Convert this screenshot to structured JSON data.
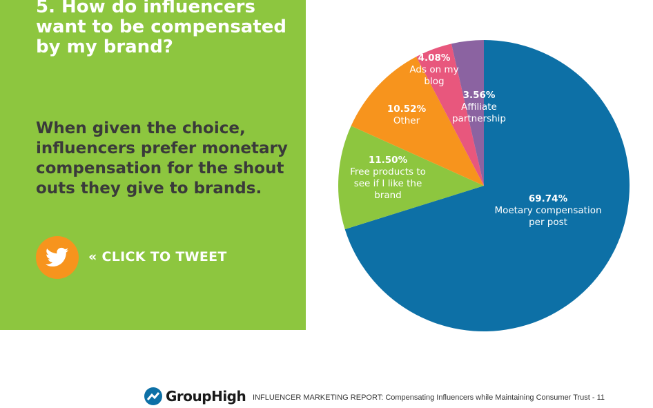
{
  "slide": {
    "question": "5. How do influencers want to be compensated by my brand?",
    "answer": "When given the choice, influencers prefer monetary compensation for the shout outs they give to brands.",
    "tweet_label": "« CLICK TO TWEET"
  },
  "footer": {
    "brand": "GroupHigh",
    "text": "INFLUENCER MARKETING REPORT:  Compensating Influencers while Maintaining Consumer Trust - 11"
  },
  "icons": {
    "tweet": "twitter-bird-icon",
    "logo": "grouphigh-logo-icon"
  },
  "colors": {
    "panel": "#8dc63f",
    "tweet_button": "#f7941d"
  },
  "chart_data": {
    "type": "pie",
    "start": "12 o'clock, clockwise",
    "slices": [
      {
        "pct": "69.74%",
        "value": 69.74,
        "label": [
          "Moetary compensation",
          "per post"
        ],
        "color": "#0d70a6"
      },
      {
        "pct": "11.50%",
        "value": 11.5,
        "label": [
          "Free products to",
          "see if I like the",
          "brand"
        ],
        "color": "#8dc63f"
      },
      {
        "pct": "10.52%",
        "value": 10.52,
        "label": [
          "Other"
        ],
        "color": "#f7941d"
      },
      {
        "pct": "4.08%",
        "value": 4.08,
        "label": [
          "Ads on my",
          "blog"
        ],
        "color": "#e8577d"
      },
      {
        "pct": "3.56%",
        "value": 3.56,
        "label": [
          "Affiliate",
          "partnership"
        ],
        "color": "#8b63a1"
      }
    ]
  }
}
